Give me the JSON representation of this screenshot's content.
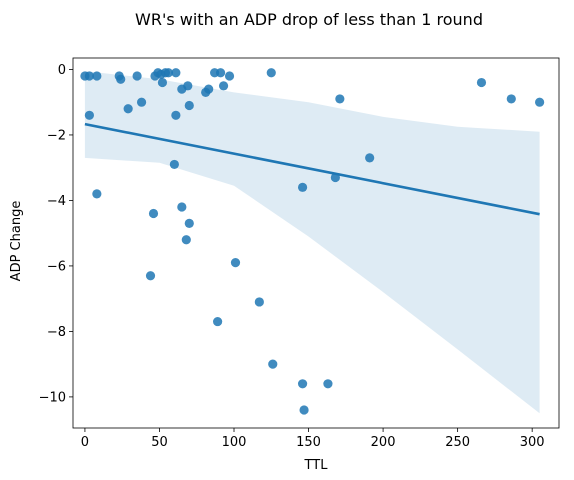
{
  "chart_data": {
    "type": "scatter",
    "title": "WR's with an ADP drop of less than 1 round",
    "xlabel": "TTL",
    "ylabel": "ADP Change",
    "xlim": [
      -8,
      318
    ],
    "ylim": [
      -10.95,
      0.35
    ],
    "xticks": [
      0,
      50,
      100,
      150,
      200,
      250,
      300
    ],
    "yticks": [
      0,
      -2,
      -4,
      -6,
      -8,
      -10
    ],
    "xtick_labels": [
      "0",
      "50",
      "100",
      "150",
      "200",
      "250",
      "300"
    ],
    "ytick_labels": [
      "0",
      "−2",
      "−4",
      "−6",
      "−8",
      "−10"
    ],
    "grid": false,
    "colors": {
      "points": "#1f77b4",
      "line": "#1f77b4",
      "band": "#1f77b4"
    },
    "points": [
      [
        0,
        -0.2
      ],
      [
        3,
        -0.2
      ],
      [
        8,
        -0.2
      ],
      [
        23,
        -0.2
      ],
      [
        24,
        -0.3
      ],
      [
        35,
        -0.2
      ],
      [
        47,
        -0.2
      ],
      [
        49,
        -0.1
      ],
      [
        51,
        -0.15
      ],
      [
        52,
        -0.4
      ],
      [
        54,
        -0.1
      ],
      [
        56,
        -0.1
      ],
      [
        61,
        -0.1
      ],
      [
        65,
        -0.6
      ],
      [
        69,
        -0.5
      ],
      [
        70,
        -1.1
      ],
      [
        81,
        -0.7
      ],
      [
        83,
        -0.6
      ],
      [
        87,
        -0.1
      ],
      [
        91,
        -0.1
      ],
      [
        93,
        -0.5
      ],
      [
        97,
        -0.2
      ],
      [
        125,
        -0.1
      ],
      [
        266,
        -0.4
      ],
      [
        286,
        -0.9
      ],
      [
        305,
        -1.0
      ],
      [
        3,
        -1.4
      ],
      [
        29,
        -1.2
      ],
      [
        38,
        -1.0
      ],
      [
        61,
        -1.4
      ],
      [
        171,
        -0.9
      ],
      [
        60,
        -2.9
      ],
      [
        191,
        -2.7
      ],
      [
        8,
        -3.8
      ],
      [
        146,
        -3.6
      ],
      [
        168,
        -3.3
      ],
      [
        46,
        -4.4
      ],
      [
        65,
        -4.2
      ],
      [
        70,
        -4.7
      ],
      [
        68,
        -5.2
      ],
      [
        44,
        -6.3
      ],
      [
        101,
        -5.9
      ],
      [
        89,
        -7.7
      ],
      [
        117,
        -7.1
      ],
      [
        126,
        -9.0
      ],
      [
        146,
        -9.6
      ],
      [
        163,
        -9.6
      ],
      [
        147,
        -10.4
      ]
    ],
    "regression": {
      "x": [
        0,
        305
      ],
      "y": [
        -1.67,
        -4.42
      ]
    },
    "confidence_band": {
      "x": [
        0,
        50,
        100,
        150,
        200,
        250,
        305
      ],
      "upper": [
        -0.05,
        -0.3,
        -0.7,
        -1.0,
        -1.45,
        -1.75,
        -1.9
      ],
      "lower": [
        -2.7,
        -2.85,
        -3.55,
        -5.1,
        -6.8,
        -8.55,
        -10.5
      ]
    }
  }
}
